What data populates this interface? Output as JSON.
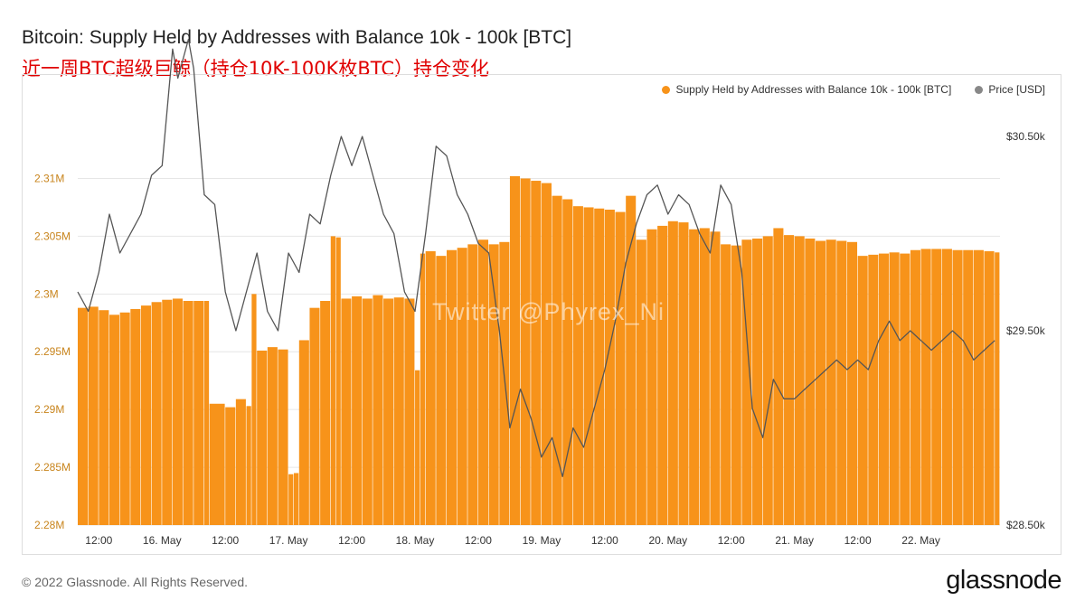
{
  "header": {
    "title": "Bitcoin: Supply Held by Addresses with Balance 10k - 100k [BTC]",
    "subtitle": "近一周BTC超级巨鲸（持仓10K-100K枚BTC）持仓变化"
  },
  "watermark": "Twitter @Phyrex_Ni",
  "footer": {
    "copyright": "© 2022 Glassnode. All Rights Reserved.",
    "brand": "glassnode"
  },
  "colors": {
    "supply": "#f7931a",
    "price": "#555555",
    "grid": "#e6e6e6",
    "left_axis_text": "#c8841c",
    "right_axis_text": "#333333"
  },
  "chart_data": {
    "type": "bar",
    "title": "Bitcoin: Supply Held by Addresses with Balance 10k - 100k [BTC]",
    "legend_placement": "top-right",
    "grid": true,
    "x_range": [
      "2022-05-15T08:00",
      "2022-05-22T15:00"
    ],
    "x_ticks": [
      {
        "t": "2022-05-15T12:00",
        "label": "12:00"
      },
      {
        "t": "2022-05-16T00:00",
        "label": "16. May"
      },
      {
        "t": "2022-05-16T12:00",
        "label": "12:00"
      },
      {
        "t": "2022-05-17T00:00",
        "label": "17. May"
      },
      {
        "t": "2022-05-17T12:00",
        "label": "12:00"
      },
      {
        "t": "2022-05-18T00:00",
        "label": "18. May"
      },
      {
        "t": "2022-05-18T12:00",
        "label": "12:00"
      },
      {
        "t": "2022-05-19T00:00",
        "label": "19. May"
      },
      {
        "t": "2022-05-19T12:00",
        "label": "12:00"
      },
      {
        "t": "2022-05-20T00:00",
        "label": "20. May"
      },
      {
        "t": "2022-05-20T12:00",
        "label": "12:00"
      },
      {
        "t": "2022-05-21T00:00",
        "label": "21. May"
      },
      {
        "t": "2022-05-21T12:00",
        "label": "12:00"
      },
      {
        "t": "2022-05-22T00:00",
        "label": "22. May"
      }
    ],
    "y_left": {
      "range": [
        2280000,
        2317000
      ],
      "ticks": [
        {
          "v": 2280000,
          "label": "2.28M"
        },
        {
          "v": 2285000,
          "label": "2.285M"
        },
        {
          "v": 2290000,
          "label": "2.29M"
        },
        {
          "v": 2295000,
          "label": "2.295M"
        },
        {
          "v": 2300000,
          "label": "2.3M"
        },
        {
          "v": 2305000,
          "label": "2.305M"
        },
        {
          "v": 2310000,
          "label": "2.31M"
        }
      ]
    },
    "y_right": {
      "range": [
        28500,
        30700
      ],
      "ticks": [
        {
          "v": 28500,
          "label": "$28.50k"
        },
        {
          "v": 29500,
          "label": "$29.50k"
        },
        {
          "v": 30500,
          "label": "$30.50k"
        }
      ]
    },
    "series": [
      {
        "name": "Supply Held by Addresses with Balance 10k - 100k [BTC]",
        "type": "bar",
        "axis": "left",
        "points": [
          [
            "2022-05-15T08:00",
            2298800
          ],
          [
            "2022-05-15T10:00",
            2298900
          ],
          [
            "2022-05-15T12:00",
            2298600
          ],
          [
            "2022-05-15T14:00",
            2298200
          ],
          [
            "2022-05-15T16:00",
            2298400
          ],
          [
            "2022-05-15T18:00",
            2298700
          ],
          [
            "2022-05-15T20:00",
            2299000
          ],
          [
            "2022-05-15T22:00",
            2299300
          ],
          [
            "2022-05-16T00:00",
            2299500
          ],
          [
            "2022-05-16T02:00",
            2299600
          ],
          [
            "2022-05-16T04:00",
            2299400
          ],
          [
            "2022-05-16T06:00",
            2299400
          ],
          [
            "2022-05-16T08:00",
            2299400
          ],
          [
            "2022-05-16T09:00",
            2290500
          ],
          [
            "2022-05-16T12:00",
            2290200
          ],
          [
            "2022-05-16T14:00",
            2290900
          ],
          [
            "2022-05-16T16:00",
            2290300
          ],
          [
            "2022-05-16T17:00",
            2300000
          ],
          [
            "2022-05-16T18:00",
            2295100
          ],
          [
            "2022-05-16T20:00",
            2295400
          ],
          [
            "2022-05-16T22:00",
            2295200
          ],
          [
            "2022-05-17T00:00",
            2284400
          ],
          [
            "2022-05-17T01:00",
            2284500
          ],
          [
            "2022-05-17T02:00",
            2296000
          ],
          [
            "2022-05-17T04:00",
            2298800
          ],
          [
            "2022-05-17T06:00",
            2299400
          ],
          [
            "2022-05-17T08:00",
            2305000
          ],
          [
            "2022-05-17T09:00",
            2304900
          ],
          [
            "2022-05-17T10:00",
            2299600
          ],
          [
            "2022-05-17T12:00",
            2299800
          ],
          [
            "2022-05-17T14:00",
            2299600
          ],
          [
            "2022-05-17T16:00",
            2299900
          ],
          [
            "2022-05-17T18:00",
            2299600
          ],
          [
            "2022-05-17T20:00",
            2299700
          ],
          [
            "2022-05-17T22:00",
            2299600
          ],
          [
            "2022-05-18T00:00",
            2293400
          ],
          [
            "2022-05-18T01:00",
            2303500
          ],
          [
            "2022-05-18T02:00",
            2303700
          ],
          [
            "2022-05-18T04:00",
            2303300
          ],
          [
            "2022-05-18T06:00",
            2303800
          ],
          [
            "2022-05-18T08:00",
            2304000
          ],
          [
            "2022-05-18T10:00",
            2304300
          ],
          [
            "2022-05-18T12:00",
            2304700
          ],
          [
            "2022-05-18T14:00",
            2304300
          ],
          [
            "2022-05-18T16:00",
            2304500
          ],
          [
            "2022-05-18T18:00",
            2310200
          ],
          [
            "2022-05-18T20:00",
            2310000
          ],
          [
            "2022-05-18T22:00",
            2309800
          ],
          [
            "2022-05-19T00:00",
            2309600
          ],
          [
            "2022-05-19T02:00",
            2308500
          ],
          [
            "2022-05-19T04:00",
            2308200
          ],
          [
            "2022-05-19T06:00",
            2307600
          ],
          [
            "2022-05-19T08:00",
            2307500
          ],
          [
            "2022-05-19T10:00",
            2307400
          ],
          [
            "2022-05-19T12:00",
            2307300
          ],
          [
            "2022-05-19T14:00",
            2307100
          ],
          [
            "2022-05-19T16:00",
            2308500
          ],
          [
            "2022-05-19T18:00",
            2304700
          ],
          [
            "2022-05-19T20:00",
            2305600
          ],
          [
            "2022-05-19T22:00",
            2305900
          ],
          [
            "2022-05-20T00:00",
            2306300
          ],
          [
            "2022-05-20T02:00",
            2306200
          ],
          [
            "2022-05-20T04:00",
            2305600
          ],
          [
            "2022-05-20T06:00",
            2305700
          ],
          [
            "2022-05-20T08:00",
            2305400
          ],
          [
            "2022-05-20T10:00",
            2304300
          ],
          [
            "2022-05-20T12:00",
            2304200
          ],
          [
            "2022-05-20T14:00",
            2304700
          ],
          [
            "2022-05-20T16:00",
            2304800
          ],
          [
            "2022-05-20T18:00",
            2305000
          ],
          [
            "2022-05-20T20:00",
            2305700
          ],
          [
            "2022-05-20T22:00",
            2305100
          ],
          [
            "2022-05-21T00:00",
            2305000
          ],
          [
            "2022-05-21T02:00",
            2304800
          ],
          [
            "2022-05-21T04:00",
            2304600
          ],
          [
            "2022-05-21T06:00",
            2304700
          ],
          [
            "2022-05-21T08:00",
            2304600
          ],
          [
            "2022-05-21T10:00",
            2304500
          ],
          [
            "2022-05-21T12:00",
            2303300
          ],
          [
            "2022-05-21T14:00",
            2303400
          ],
          [
            "2022-05-21T16:00",
            2303500
          ],
          [
            "2022-05-21T18:00",
            2303600
          ],
          [
            "2022-05-21T20:00",
            2303500
          ],
          [
            "2022-05-21T22:00",
            2303800
          ],
          [
            "2022-05-22T00:00",
            2303900
          ],
          [
            "2022-05-22T02:00",
            2303900
          ],
          [
            "2022-05-22T04:00",
            2303900
          ],
          [
            "2022-05-22T06:00",
            2303800
          ],
          [
            "2022-05-22T08:00",
            2303800
          ],
          [
            "2022-05-22T10:00",
            2303800
          ],
          [
            "2022-05-22T12:00",
            2303700
          ],
          [
            "2022-05-22T14:00",
            2303600
          ]
        ]
      },
      {
        "name": "Price [USD]",
        "type": "line",
        "axis": "right",
        "points": [
          [
            "2022-05-15T08:00",
            29700
          ],
          [
            "2022-05-15T10:00",
            29600
          ],
          [
            "2022-05-15T12:00",
            29800
          ],
          [
            "2022-05-15T14:00",
            30100
          ],
          [
            "2022-05-15T16:00",
            29900
          ],
          [
            "2022-05-15T18:00",
            30000
          ],
          [
            "2022-05-15T20:00",
            30100
          ],
          [
            "2022-05-15T22:00",
            30300
          ],
          [
            "2022-05-16T00:00",
            30350
          ],
          [
            "2022-05-16T02:00",
            30950
          ],
          [
            "2022-05-16T03:00",
            30800
          ],
          [
            "2022-05-16T05:00",
            31000
          ],
          [
            "2022-05-16T06:00",
            30850
          ],
          [
            "2022-05-16T08:00",
            30200
          ],
          [
            "2022-05-16T10:00",
            30150
          ],
          [
            "2022-05-16T12:00",
            29700
          ],
          [
            "2022-05-16T14:00",
            29500
          ],
          [
            "2022-05-16T16:00",
            29700
          ],
          [
            "2022-05-16T18:00",
            29900
          ],
          [
            "2022-05-16T20:00",
            29600
          ],
          [
            "2022-05-16T22:00",
            29500
          ],
          [
            "2022-05-17T00:00",
            29900
          ],
          [
            "2022-05-17T02:00",
            29800
          ],
          [
            "2022-05-17T04:00",
            30100
          ],
          [
            "2022-05-17T06:00",
            30050
          ],
          [
            "2022-05-17T08:00",
            30300
          ],
          [
            "2022-05-17T10:00",
            30500
          ],
          [
            "2022-05-17T12:00",
            30350
          ],
          [
            "2022-05-17T14:00",
            30500
          ],
          [
            "2022-05-17T16:00",
            30300
          ],
          [
            "2022-05-17T18:00",
            30100
          ],
          [
            "2022-05-17T20:00",
            30000
          ],
          [
            "2022-05-17T22:00",
            29700
          ],
          [
            "2022-05-18T00:00",
            29600
          ],
          [
            "2022-05-18T02:00",
            30000
          ],
          [
            "2022-05-18T04:00",
            30450
          ],
          [
            "2022-05-18T06:00",
            30400
          ],
          [
            "2022-05-18T08:00",
            30200
          ],
          [
            "2022-05-18T10:00",
            30100
          ],
          [
            "2022-05-18T12:00",
            29950
          ],
          [
            "2022-05-18T14:00",
            29900
          ],
          [
            "2022-05-18T16:00",
            29500
          ],
          [
            "2022-05-18T18:00",
            29000
          ],
          [
            "2022-05-18T20:00",
            29200
          ],
          [
            "2022-05-18T22:00",
            29050
          ],
          [
            "2022-05-19T00:00",
            28850
          ],
          [
            "2022-05-19T02:00",
            28950
          ],
          [
            "2022-05-19T04:00",
            28750
          ],
          [
            "2022-05-19T06:00",
            29000
          ],
          [
            "2022-05-19T08:00",
            28900
          ],
          [
            "2022-05-19T10:00",
            29100
          ],
          [
            "2022-05-19T12:00",
            29300
          ],
          [
            "2022-05-19T14:00",
            29550
          ],
          [
            "2022-05-19T16:00",
            29850
          ],
          [
            "2022-05-19T18:00",
            30050
          ],
          [
            "2022-05-19T20:00",
            30200
          ],
          [
            "2022-05-19T22:00",
            30250
          ],
          [
            "2022-05-20T00:00",
            30100
          ],
          [
            "2022-05-20T02:00",
            30200
          ],
          [
            "2022-05-20T04:00",
            30150
          ],
          [
            "2022-05-20T06:00",
            30000
          ],
          [
            "2022-05-20T08:00",
            29900
          ],
          [
            "2022-05-20T10:00",
            30250
          ],
          [
            "2022-05-20T12:00",
            30150
          ],
          [
            "2022-05-20T14:00",
            29800
          ],
          [
            "2022-05-20T16:00",
            29100
          ],
          [
            "2022-05-20T18:00",
            28950
          ],
          [
            "2022-05-20T20:00",
            29250
          ],
          [
            "2022-05-20T22:00",
            29150
          ],
          [
            "2022-05-21T00:00",
            29150
          ],
          [
            "2022-05-21T02:00",
            29200
          ],
          [
            "2022-05-21T04:00",
            29250
          ],
          [
            "2022-05-21T06:00",
            29300
          ],
          [
            "2022-05-21T08:00",
            29350
          ],
          [
            "2022-05-21T10:00",
            29300
          ],
          [
            "2022-05-21T12:00",
            29350
          ],
          [
            "2022-05-21T14:00",
            29300
          ],
          [
            "2022-05-21T16:00",
            29450
          ],
          [
            "2022-05-21T18:00",
            29550
          ],
          [
            "2022-05-21T20:00",
            29450
          ],
          [
            "2022-05-21T22:00",
            29500
          ],
          [
            "2022-05-22T00:00",
            29450
          ],
          [
            "2022-05-22T02:00",
            29400
          ],
          [
            "2022-05-22T04:00",
            29450
          ],
          [
            "2022-05-22T06:00",
            29500
          ],
          [
            "2022-05-22T08:00",
            29450
          ],
          [
            "2022-05-22T10:00",
            29350
          ],
          [
            "2022-05-22T12:00",
            29400
          ],
          [
            "2022-05-22T14:00",
            29450
          ]
        ]
      }
    ]
  }
}
